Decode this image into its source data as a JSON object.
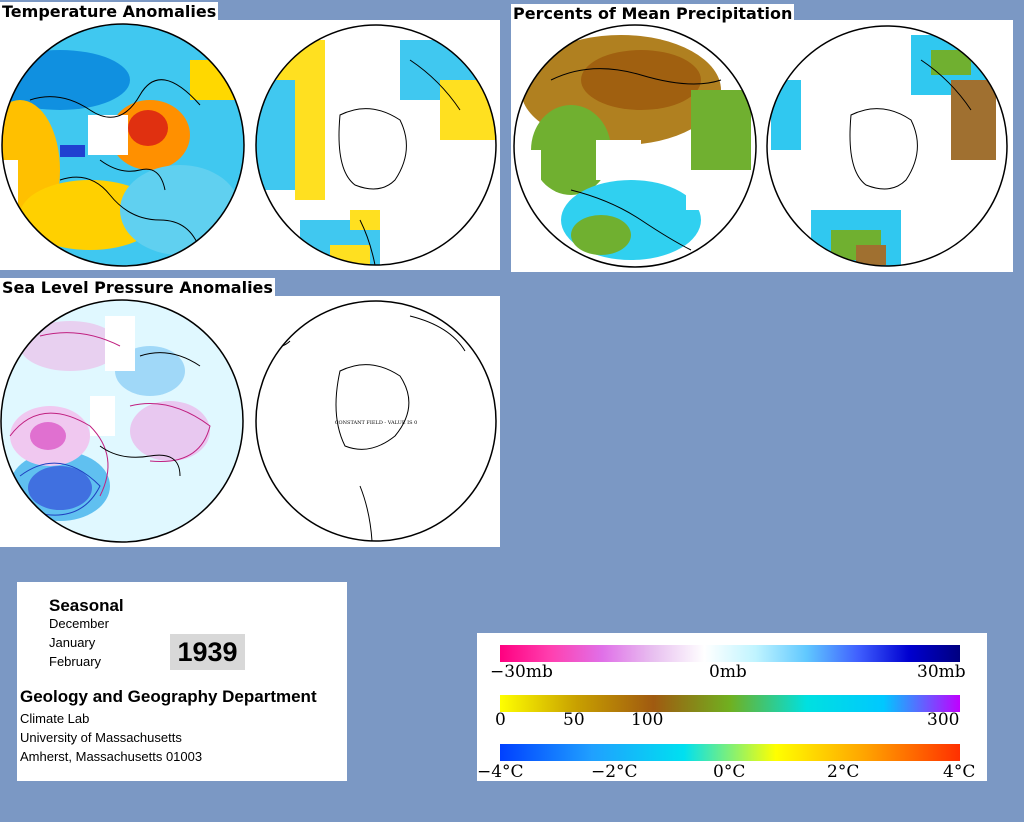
{
  "panels": {
    "temperature": {
      "title": "Temperature Anomalies"
    },
    "precipitation": {
      "title": "Percents of Mean Precipitation"
    },
    "pressure": {
      "title": "Sea Level Pressure Anomalies",
      "south_note": "CONSTANT FIELD - VALUE IS 0"
    }
  },
  "info": {
    "period": "Seasonal",
    "months": [
      "December",
      "January",
      "February"
    ],
    "year": "1939",
    "department": "Geology and Geography Department",
    "lab": "Climate Lab",
    "university": "University of Massachusetts",
    "address": "Amherst, Massachusetts 01003"
  },
  "legend": {
    "pressure": {
      "labels": [
        "−30mb",
        "0mb",
        "30mb"
      ],
      "colors": [
        "#ff0080",
        "#ff40b0",
        "#e070e8",
        "#e8c0f0",
        "#ffffff",
        "#c0f4ff",
        "#60c8ff",
        "#4060ff",
        "#0000d0",
        "#000080"
      ]
    },
    "precipitation": {
      "labels": [
        "0",
        "50",
        "100",
        "300"
      ],
      "colors": [
        "#ffff00",
        "#c8a000",
        "#a05a10",
        "#70b020",
        "#00e0e0",
        "#00c8ff",
        "#c000ff"
      ]
    },
    "temperature": {
      "labels": [
        "−4°C",
        "−2°C",
        "0°C",
        "2°C",
        "4°C"
      ],
      "colors": [
        "#0040ff",
        "#20a0ff",
        "#00e0f0",
        "#ffff00",
        "#ffa000",
        "#ff3000"
      ]
    }
  }
}
